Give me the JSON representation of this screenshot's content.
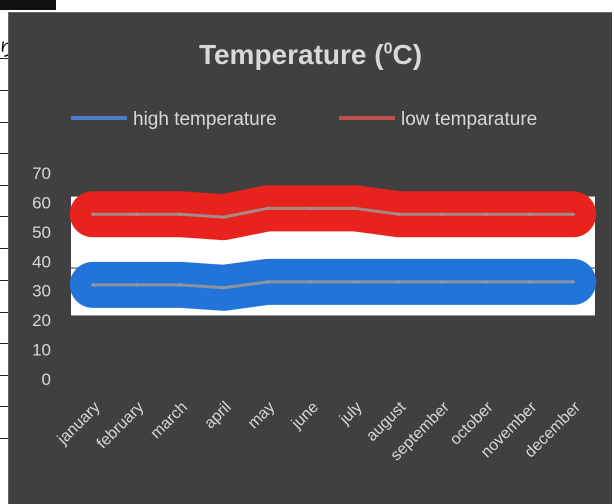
{
  "background_sheet": {
    "partial_glyph": "り"
  },
  "chart_data": {
    "type": "area",
    "title": "Temperature (",
    "title_sup": "0",
    "title_suffix": "C)",
    "categories": [
      "january",
      "february",
      "march",
      "april",
      "may",
      "june",
      "july",
      "august",
      "september",
      "october",
      "november",
      "december"
    ],
    "series": [
      {
        "name": "high temperature",
        "color": "#4a7ec9",
        "band_color": "#2274d8",
        "values": [
          32,
          32,
          32,
          31,
          33,
          33,
          33,
          33,
          33,
          33,
          33,
          33
        ]
      },
      {
        "name": "low temparature",
        "color": "#c0504d",
        "band_color": "#e8221c",
        "values": [
          56,
          56,
          56,
          55,
          58,
          58,
          58,
          56,
          56,
          56,
          56,
          56
        ]
      }
    ],
    "yticks": [
      0,
      10,
      20,
      30,
      40,
      50,
      60,
      70
    ],
    "ylim": [
      0,
      70
    ],
    "grid": false,
    "legend_position": "top"
  },
  "colors": {
    "chart_background": "#404040",
    "text": "#d8d8d8",
    "plot_fill": "#ffffff"
  }
}
